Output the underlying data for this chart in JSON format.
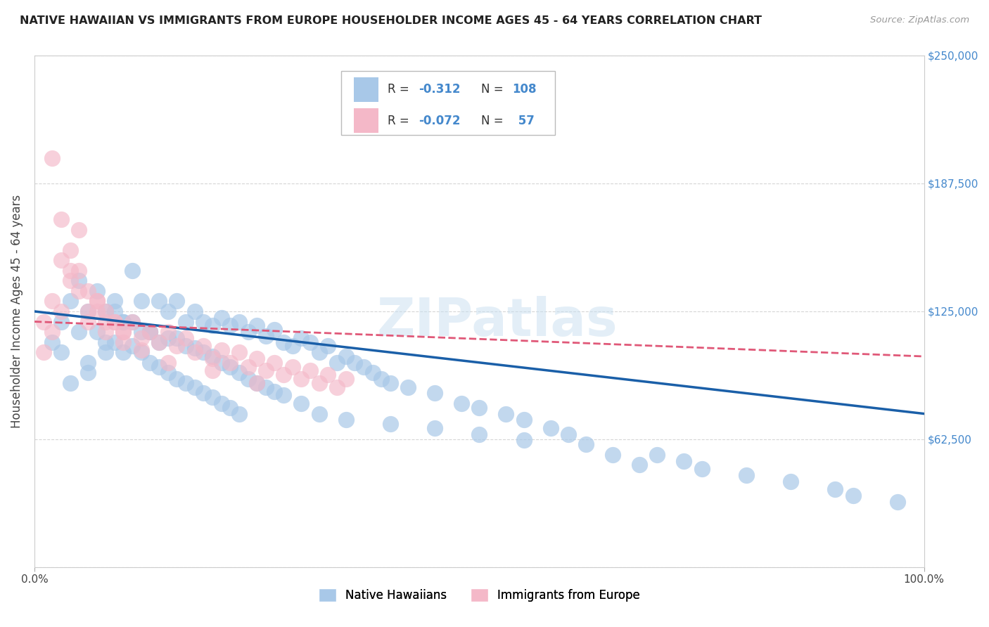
{
  "title": "NATIVE HAWAIIAN VS IMMIGRANTS FROM EUROPE HOUSEHOLDER INCOME AGES 45 - 64 YEARS CORRELATION CHART",
  "source": "Source: ZipAtlas.com",
  "ylabel": "Householder Income Ages 45 - 64 years",
  "xlim": [
    0,
    100
  ],
  "ylim": [
    0,
    250000
  ],
  "yticks": [
    0,
    62500,
    125000,
    187500,
    250000
  ],
  "ytick_labels_right": [
    "",
    "$62,500",
    "$125,000",
    "$187,500",
    "$250,000"
  ],
  "xtick_labels": [
    "0.0%",
    "100.0%"
  ],
  "color_blue": "#a8c8e8",
  "color_pink": "#f4b8c8",
  "line_blue": "#1a5fa8",
  "line_pink": "#e05878",
  "watermark": "ZIPatlas",
  "blue_r": -0.312,
  "blue_n": 108,
  "pink_r": -0.072,
  "pink_n": 57,
  "blue_line_y0": 125000,
  "blue_line_y1": 75000,
  "pink_line_y0": 120000,
  "pink_line_y1": 103000,
  "background_color": "#ffffff",
  "grid_color": "#cccccc",
  "label_color_blue": "#4488cc",
  "blue_x": [
    2,
    3,
    4,
    5,
    6,
    3,
    5,
    7,
    8,
    4,
    6,
    9,
    10,
    7,
    8,
    11,
    9,
    12,
    10,
    13,
    6,
    8,
    14,
    11,
    15,
    9,
    16,
    12,
    17,
    10,
    18,
    13,
    19,
    14,
    20,
    15,
    21,
    11,
    22,
    16,
    23,
    12,
    24,
    17,
    25,
    13,
    26,
    18,
    27,
    19,
    28,
    14,
    29,
    20,
    30,
    15,
    21,
    31,
    16,
    32,
    22,
    33,
    17,
    34,
    23,
    35,
    18,
    24,
    36,
    19,
    25,
    37,
    20,
    26,
    38,
    21,
    27,
    39,
    22,
    28,
    40,
    23,
    42,
    30,
    45,
    32,
    48,
    35,
    50,
    40,
    53,
    45,
    55,
    50,
    58,
    55,
    60,
    62,
    65,
    68,
    70,
    73,
    75,
    80,
    85,
    90,
    92,
    97
  ],
  "blue_y": [
    110000,
    120000,
    130000,
    115000,
    125000,
    105000,
    140000,
    135000,
    125000,
    90000,
    100000,
    130000,
    120000,
    115000,
    110000,
    145000,
    125000,
    130000,
    120000,
    115000,
    95000,
    105000,
    130000,
    120000,
    125000,
    110000,
    130000,
    115000,
    120000,
    105000,
    125000,
    115000,
    120000,
    110000,
    118000,
    112000,
    122000,
    108000,
    118000,
    112000,
    120000,
    105000,
    115000,
    108000,
    118000,
    100000,
    113000,
    107000,
    116000,
    105000,
    110000,
    98000,
    108000,
    103000,
    112000,
    95000,
    100000,
    110000,
    92000,
    105000,
    98000,
    108000,
    90000,
    100000,
    95000,
    103000,
    88000,
    92000,
    100000,
    85000,
    90000,
    98000,
    83000,
    88000,
    95000,
    80000,
    86000,
    92000,
    78000,
    84000,
    90000,
    75000,
    88000,
    80000,
    85000,
    75000,
    80000,
    72000,
    78000,
    70000,
    75000,
    68000,
    72000,
    65000,
    68000,
    62000,
    65000,
    60000,
    55000,
    50000,
    55000,
    52000,
    48000,
    45000,
    42000,
    38000,
    35000,
    32000
  ],
  "pink_x": [
    1,
    2,
    3,
    4,
    5,
    6,
    7,
    8,
    1,
    2,
    3,
    4,
    5,
    6,
    7,
    8,
    9,
    10,
    2,
    3,
    4,
    5,
    6,
    7,
    8,
    9,
    10,
    11,
    12,
    13,
    14,
    15,
    16,
    17,
    18,
    19,
    20,
    21,
    22,
    23,
    24,
    25,
    26,
    27,
    28,
    29,
    30,
    31,
    32,
    33,
    34,
    35,
    10,
    12,
    15,
    20,
    25
  ],
  "pink_y": [
    120000,
    130000,
    125000,
    140000,
    135000,
    125000,
    130000,
    120000,
    105000,
    115000,
    150000,
    145000,
    165000,
    120000,
    125000,
    115000,
    120000,
    115000,
    200000,
    170000,
    155000,
    145000,
    135000,
    130000,
    125000,
    120000,
    115000,
    120000,
    112000,
    115000,
    110000,
    115000,
    108000,
    112000,
    105000,
    108000,
    102000,
    106000,
    100000,
    105000,
    98000,
    102000,
    96000,
    100000,
    94000,
    98000,
    92000,
    96000,
    90000,
    94000,
    88000,
    92000,
    110000,
    106000,
    100000,
    96000,
    90000
  ]
}
